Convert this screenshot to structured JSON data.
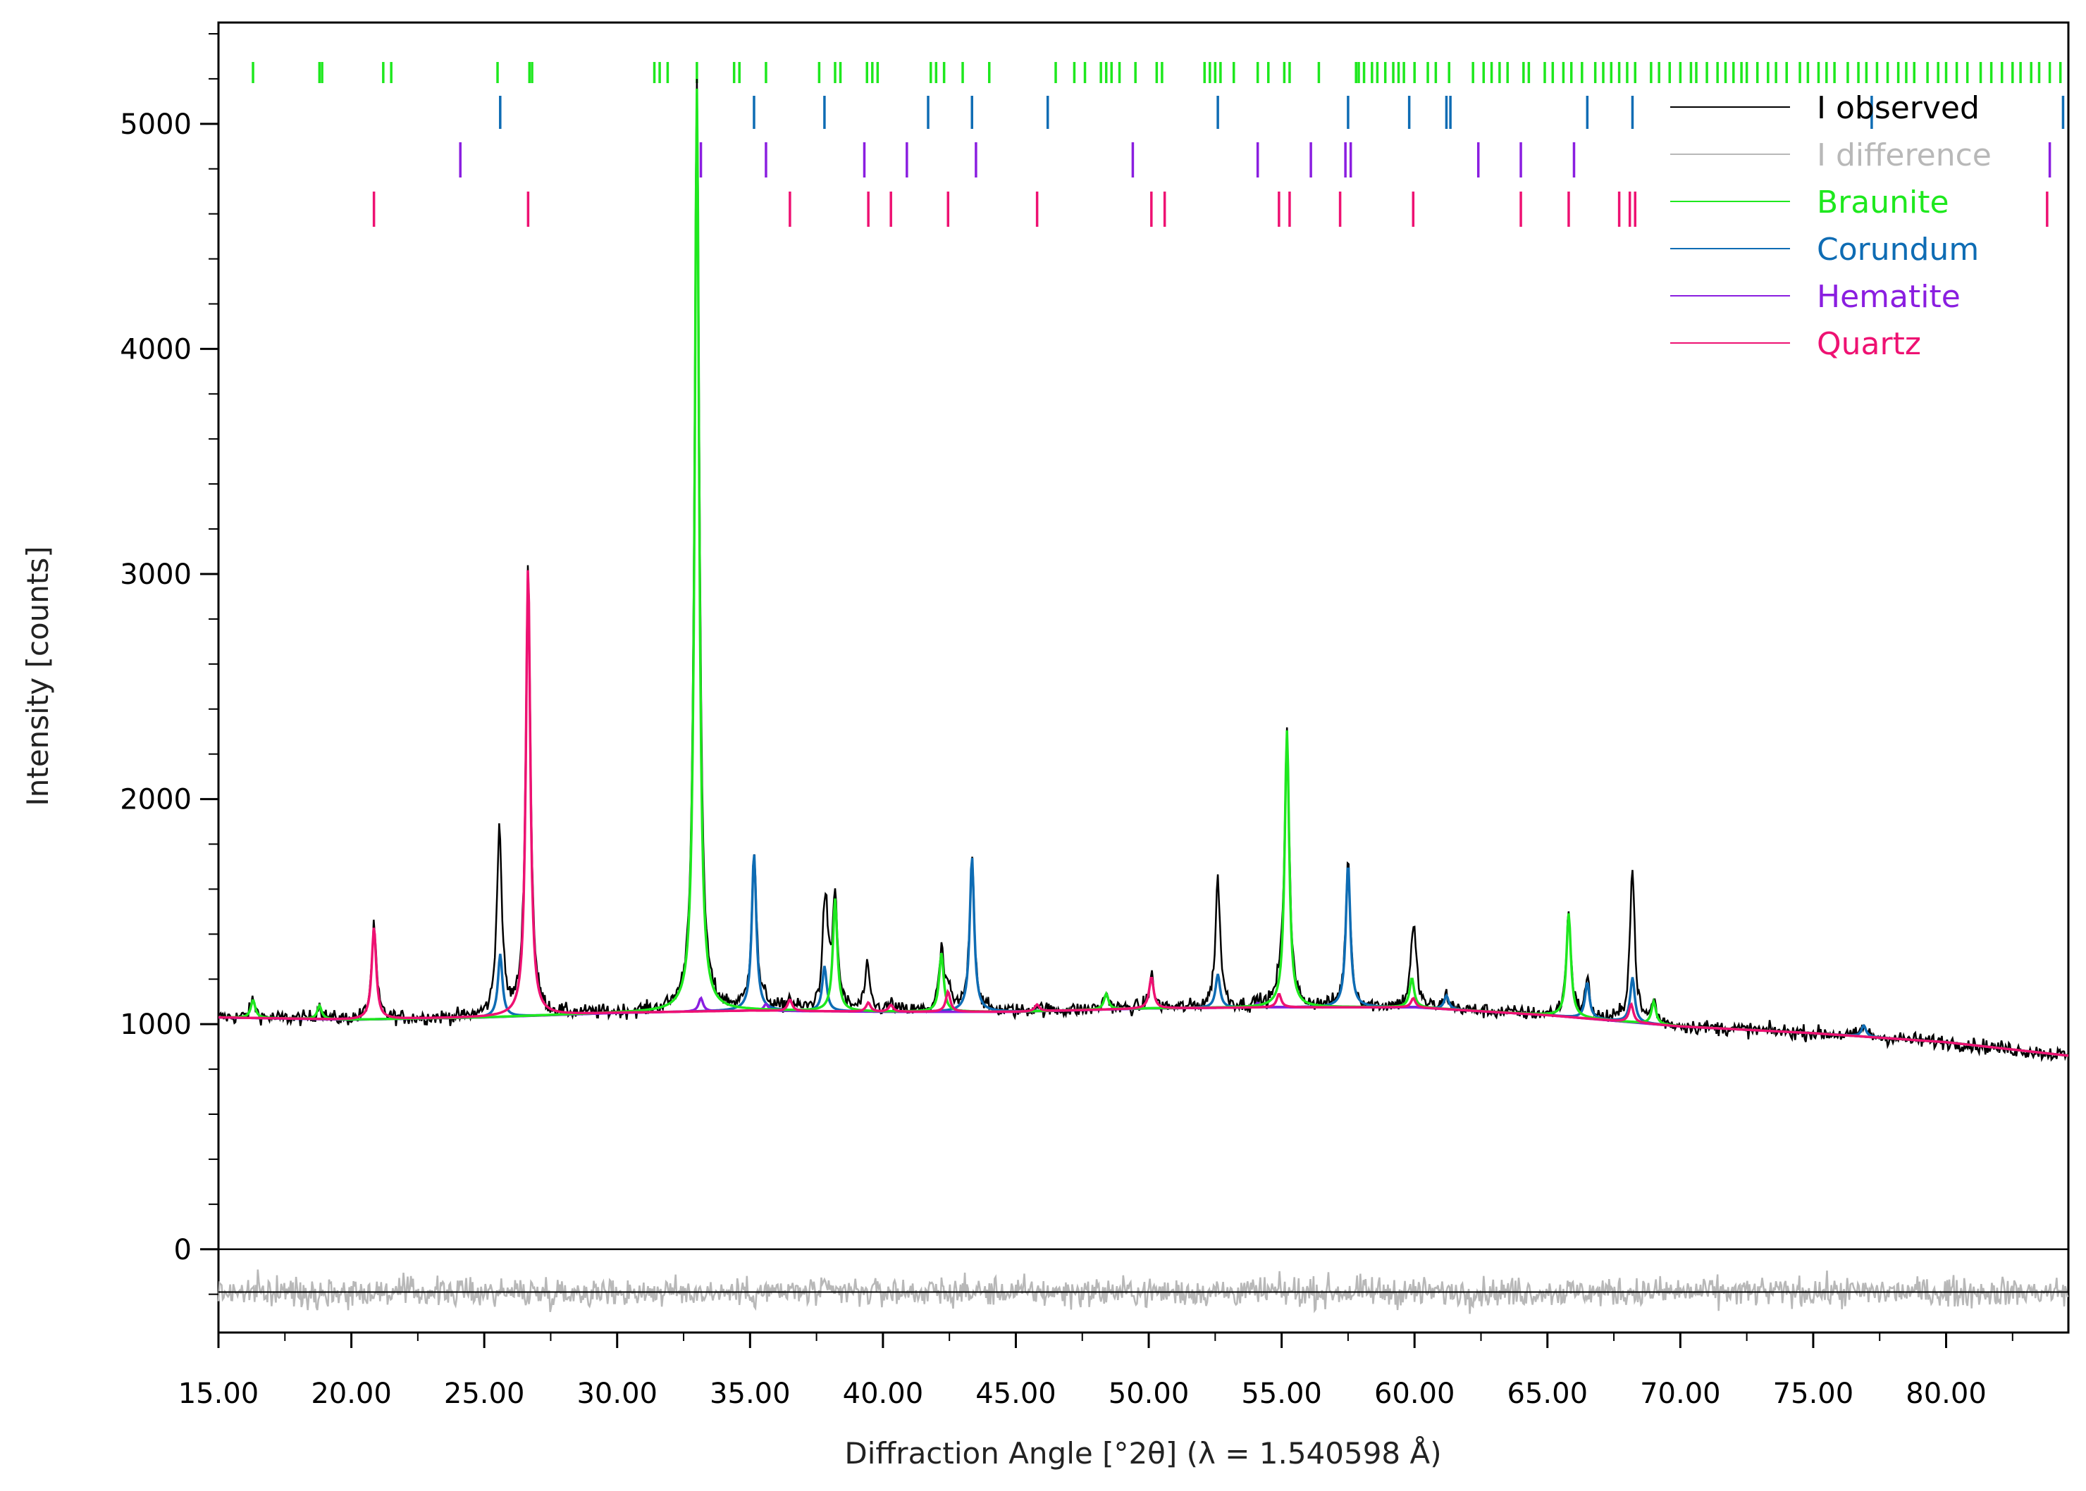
{
  "chart_data": {
    "type": "line",
    "xlabel": "Diffraction Angle [°2θ] (λ = 1.540598 Å)",
    "ylabel": "Intensity [counts]",
    "xlim": [
      15.0,
      84.6
    ],
    "ylim": [
      -370,
      5450
    ],
    "x_ticks": [
      15,
      20,
      25,
      30,
      35,
      40,
      45,
      50,
      55,
      60,
      65,
      70,
      75,
      80
    ],
    "x_tick_labels": [
      "15.00",
      "20.00",
      "25.00",
      "30.00",
      "35.00",
      "40.00",
      "45.00",
      "50.00",
      "55.00",
      "60.00",
      "65.00",
      "70.00",
      "75.00",
      "80.00"
    ],
    "y_ticks": [
      0,
      1000,
      2000,
      3000,
      4000,
      5000
    ],
    "y_tick_labels": [
      "0",
      "1000",
      "2000",
      "3000",
      "4000",
      "5000"
    ],
    "grid": false,
    "legend_position": "top-right",
    "background": [
      [
        15,
        1030
      ],
      [
        20,
        1020
      ],
      [
        25,
        1030
      ],
      [
        30,
        1050
      ],
      [
        35,
        1060
      ],
      [
        40,
        1055
      ],
      [
        45,
        1055
      ],
      [
        50,
        1070
      ],
      [
        55,
        1075
      ],
      [
        60,
        1075
      ],
      [
        65,
        1040
      ],
      [
        70,
        990
      ],
      [
        75,
        960
      ],
      [
        80,
        920
      ],
      [
        84.6,
        860
      ]
    ],
    "difference_offset": -190,
    "legend": [
      {
        "label": "I observed",
        "color": "#000000"
      },
      {
        "label": "I difference",
        "color": "#b8b8b8"
      },
      {
        "label": "Braunite",
        "color": "#1ee81e"
      },
      {
        "label": "Corundum",
        "color": "#0e6cb4"
      },
      {
        "label": "Hematite",
        "color": "#8a1ee0"
      },
      {
        "label": "Quartz",
        "color": "#ee1172"
      }
    ],
    "series": [
      {
        "name": "Braunite",
        "color": "#1ee81e",
        "peaks": [
          [
            16.3,
            80
          ],
          [
            18.8,
            60
          ],
          [
            33.0,
            4100
          ],
          [
            38.2,
            500
          ],
          [
            42.2,
            260
          ],
          [
            48.4,
            70
          ],
          [
            55.2,
            1230
          ],
          [
            59.9,
            130
          ],
          [
            65.8,
            460
          ],
          [
            69.0,
            100
          ]
        ],
        "reflections": [
          16.3,
          18.8,
          18.9,
          21.2,
          21.5,
          25.5,
          26.7,
          26.8,
          31.4,
          31.6,
          31.9,
          33.0,
          34.4,
          34.6,
          35.6,
          37.6,
          38.2,
          38.4,
          39.4,
          39.6,
          39.8,
          41.8,
          42.0,
          42.3,
          43.0,
          44.0,
          46.5,
          47.2,
          47.6,
          48.2,
          48.4,
          48.6,
          48.9,
          49.5,
          50.3,
          50.5,
          52.1,
          52.3,
          52.5,
          52.7,
          53.2,
          54.1,
          54.5,
          55.1,
          55.3,
          56.4,
          57.8,
          57.9,
          58.1,
          58.4,
          58.6,
          58.9,
          59.2,
          59.4,
          59.6,
          60.0,
          60.5,
          60.8,
          61.3,
          62.2,
          62.6,
          62.9,
          63.2,
          63.5,
          64.1,
          64.3,
          64.9,
          65.2,
          65.6,
          65.9,
          66.3,
          66.8,
          67.1,
          67.4,
          67.7,
          68.0,
          68.3,
          68.9,
          69.2,
          69.6,
          70.0,
          70.4,
          70.6,
          71.0,
          71.4,
          71.7,
          72.0,
          72.3,
          72.5,
          72.9,
          73.3,
          73.6,
          74.0,
          74.5,
          74.8,
          75.2,
          75.5,
          75.8,
          76.3,
          76.7,
          77.0,
          77.4,
          77.8,
          78.2,
          78.5,
          78.8,
          79.3,
          79.7,
          80.0,
          80.4,
          80.8,
          81.3,
          81.7,
          82.1,
          82.5,
          82.8,
          83.2,
          83.5,
          83.9,
          84.3
        ]
      },
      {
        "name": "Corundum",
        "color": "#0e6cb4",
        "peaks": [
          [
            25.6,
            280
          ],
          [
            35.15,
            700
          ],
          [
            37.8,
            200
          ],
          [
            43.35,
            690
          ],
          [
            52.6,
            150
          ],
          [
            57.5,
            640
          ],
          [
            61.2,
            60
          ],
          [
            66.5,
            160
          ],
          [
            68.2,
            200
          ],
          [
            76.9,
            50
          ]
        ],
        "reflections": [
          25.6,
          35.15,
          37.8,
          41.7,
          43.35,
          46.2,
          52.6,
          57.5,
          59.8,
          61.2,
          61.35,
          66.5,
          68.2,
          77.2,
          84.4
        ]
      },
      {
        "name": "Hematite",
        "color": "#8a1ee0",
        "peaks": [
          [
            33.15,
            60
          ],
          [
            35.6,
            30
          ],
          [
            54.1,
            20
          ]
        ],
        "reflections": [
          24.1,
          33.15,
          35.6,
          39.3,
          40.9,
          43.5,
          49.4,
          54.1,
          56.1,
          57.4,
          57.6,
          62.4,
          64.0,
          66.0,
          83.9
        ]
      },
      {
        "name": "Quartz",
        "color": "#ee1172",
        "peaks": [
          [
            20.85,
            410
          ],
          [
            26.65,
            2000
          ],
          [
            36.5,
            50
          ],
          [
            39.45,
            40
          ],
          [
            40.3,
            30
          ],
          [
            42.45,
            90
          ],
          [
            45.8,
            30
          ],
          [
            50.1,
            140
          ],
          [
            54.9,
            60
          ],
          [
            59.95,
            40
          ],
          [
            68.15,
            80
          ]
        ],
        "reflections": [
          20.85,
          26.65,
          36.5,
          39.45,
          40.3,
          42.45,
          45.8,
          50.1,
          50.6,
          54.9,
          55.3,
          57.2,
          59.95,
          64.0,
          65.8,
          67.7,
          68.1,
          68.3,
          83.8
        ]
      }
    ],
    "observed_extra_peaks": [
      [
        25.55,
        580
      ],
      [
        37.85,
        320
      ],
      [
        39.4,
        150
      ],
      [
        52.6,
        420
      ],
      [
        60.0,
        230
      ],
      [
        68.2,
        400
      ]
    ]
  }
}
